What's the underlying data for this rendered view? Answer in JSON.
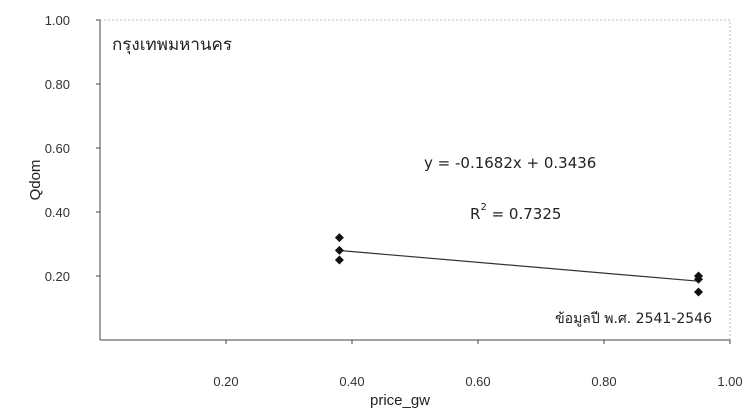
{
  "chart_data": {
    "type": "scatter",
    "title": "กรุงเทพมหานคร",
    "xlabel": "price_gw",
    "ylabel": "Qdom",
    "xlim": [
      0,
      1.0
    ],
    "ylim": [
      0,
      1.0
    ],
    "x_ticks": [
      "0.20",
      "0.40",
      "0.60",
      "0.80",
      "1.00"
    ],
    "y_ticks": [
      "0.20",
      "0.40",
      "0.60",
      "0.80",
      "1.00"
    ],
    "x_tick_values": [
      0.2,
      0.4,
      0.6,
      0.8,
      1.0
    ],
    "y_tick_values": [
      0.2,
      0.4,
      0.6,
      0.8,
      1.0
    ],
    "series": [
      {
        "marker": "diamond",
        "color": "#111111",
        "points": [
          {
            "x": 0.38,
            "y": 0.32
          },
          {
            "x": 0.38,
            "y": 0.28
          },
          {
            "x": 0.38,
            "y": 0.25
          },
          {
            "x": 0.95,
            "y": 0.2
          },
          {
            "x": 0.95,
            "y": 0.19
          },
          {
            "x": 0.95,
            "y": 0.15
          }
        ]
      }
    ],
    "trendline": {
      "slope": -0.1682,
      "intercept": 0.3436,
      "x_range": [
        0.38,
        0.95
      ],
      "color": "#333333"
    },
    "annotations": {
      "equation": "y = -0.1682x + 0.3436",
      "r2_label": "R",
      "r2_exp": "2",
      "r2_value": " = 0.7325",
      "source_note": "ข้อมูลปี พ.ศ. 2541-2546"
    },
    "grid": false,
    "frame_color": "#bbbbbb"
  }
}
